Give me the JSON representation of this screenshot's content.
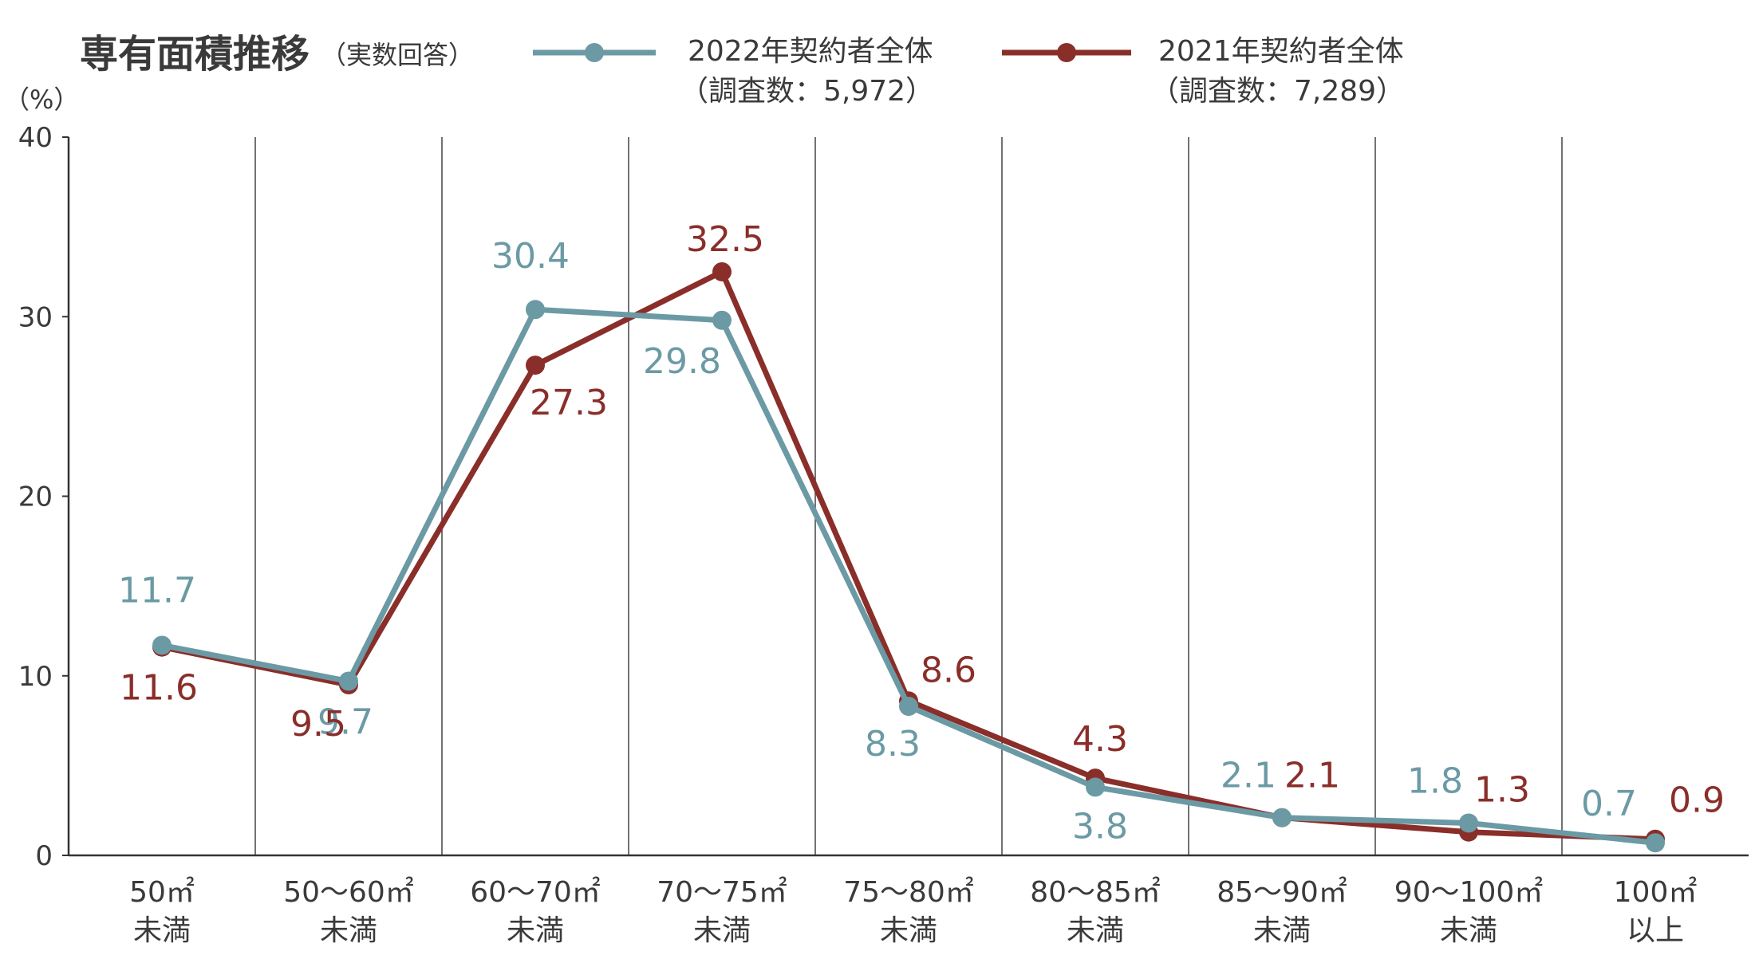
{
  "chart_data": {
    "type": "line",
    "title": "専有面積推移",
    "subtitle": "（実数回答）",
    "y_unit_label": "（%）",
    "ylim": [
      0,
      40
    ],
    "yticks": [
      0,
      10,
      20,
      30,
      40
    ],
    "grid": "vertical category separators",
    "legend_position": "top",
    "categories": [
      [
        "50㎡",
        "未満"
      ],
      [
        "50〜60㎡",
        "未満"
      ],
      [
        "60〜70㎡",
        "未満"
      ],
      [
        "70〜75㎡",
        "未満"
      ],
      [
        "75〜80㎡",
        "未満"
      ],
      [
        "80〜85㎡",
        "未満"
      ],
      [
        "85〜90㎡",
        "未満"
      ],
      [
        "90〜100㎡",
        "未満"
      ],
      [
        "100㎡",
        "以上"
      ]
    ],
    "series": [
      {
        "name": "2022年契約者全体",
        "sample": "（調査数：5,972）",
        "color": "#6b9aa5",
        "values": [
          11.7,
          9.7,
          30.4,
          29.8,
          8.3,
          3.8,
          2.1,
          1.8,
          0.7
        ],
        "labels": [
          "11.7",
          "9.7",
          "30.4",
          "29.8",
          "8.3",
          "3.8",
          "2.1",
          "1.8",
          "0.7"
        ]
      },
      {
        "name": "2021年契約者全体",
        "sample": "（調査数：7,289）",
        "color": "#8a2e2a",
        "values": [
          11.6,
          9.5,
          27.3,
          32.5,
          8.6,
          4.3,
          2.1,
          1.3,
          0.9
        ],
        "labels": [
          "11.6",
          "9.5",
          "27.3",
          "32.5",
          "8.6",
          "4.3",
          "2.1",
          "1.3",
          "0.9"
        ]
      }
    ]
  }
}
